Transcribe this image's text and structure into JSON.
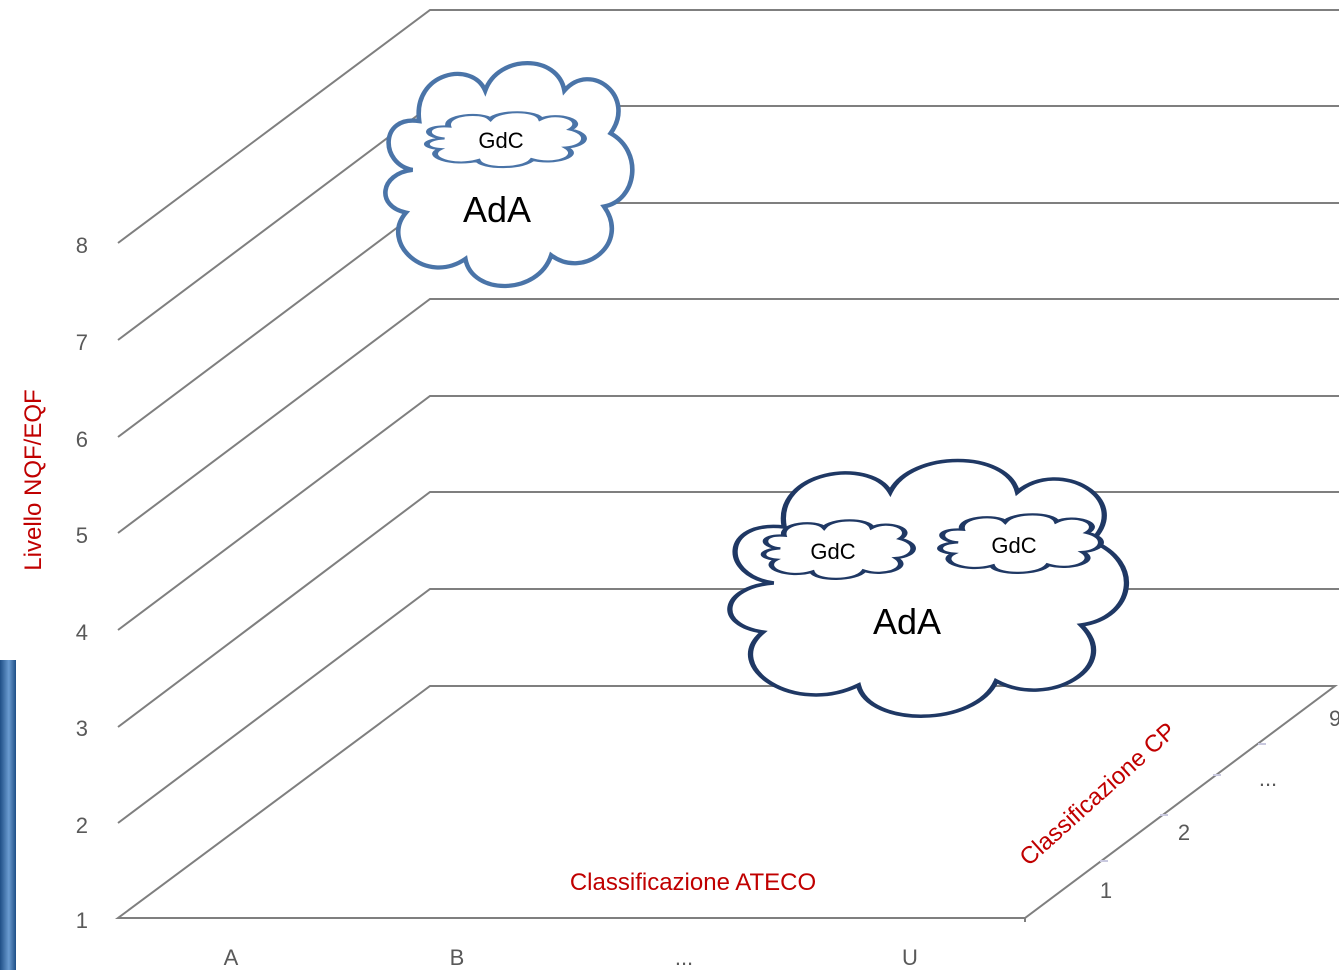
{
  "diagram": {
    "y_axis_title": "Livello NQF/EQF",
    "x_axis_title": "Classificazione ATECO",
    "z_axis_title": "Classificazione CP",
    "y_ticks": [
      "1",
      "2",
      "3",
      "4",
      "5",
      "6",
      "7",
      "8"
    ],
    "x_ticks": [
      "A",
      "B",
      "...",
      "U"
    ],
    "z_ticks": [
      "1",
      "2",
      "...",
      "9"
    ],
    "clouds": [
      {
        "big_label": "AdA",
        "small_labels": [
          "GdC"
        ]
      },
      {
        "big_label": "AdA",
        "small_labels": [
          "GdC",
          "GdC"
        ]
      }
    ],
    "colors": {
      "grid": "#7f7f7f",
      "tick_text": "#595959",
      "axis_title": "#c00000",
      "cloud_1": "#4a74a8",
      "cloud_2": "#1f3864"
    }
  }
}
